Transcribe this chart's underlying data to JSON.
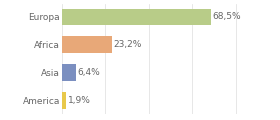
{
  "categories": [
    "America",
    "Asia",
    "Africa",
    "Europa"
  ],
  "values": [
    1.9,
    6.4,
    23.2,
    68.5
  ],
  "labels": [
    "1,9%",
    "6,4%",
    "23,2%",
    "68,5%"
  ],
  "colors": [
    "#e8c84a",
    "#7b8fc0",
    "#e8a878",
    "#b8cc88"
  ],
  "xlim": [
    0,
    85
  ],
  "background_color": "#ffffff",
  "bar_height": 0.6,
  "label_fontsize": 6.5,
  "tick_fontsize": 6.5,
  "grid_color": "#dddddd",
  "grid_ticks": [
    0,
    20,
    40,
    60,
    80
  ],
  "text_color": "#666666"
}
